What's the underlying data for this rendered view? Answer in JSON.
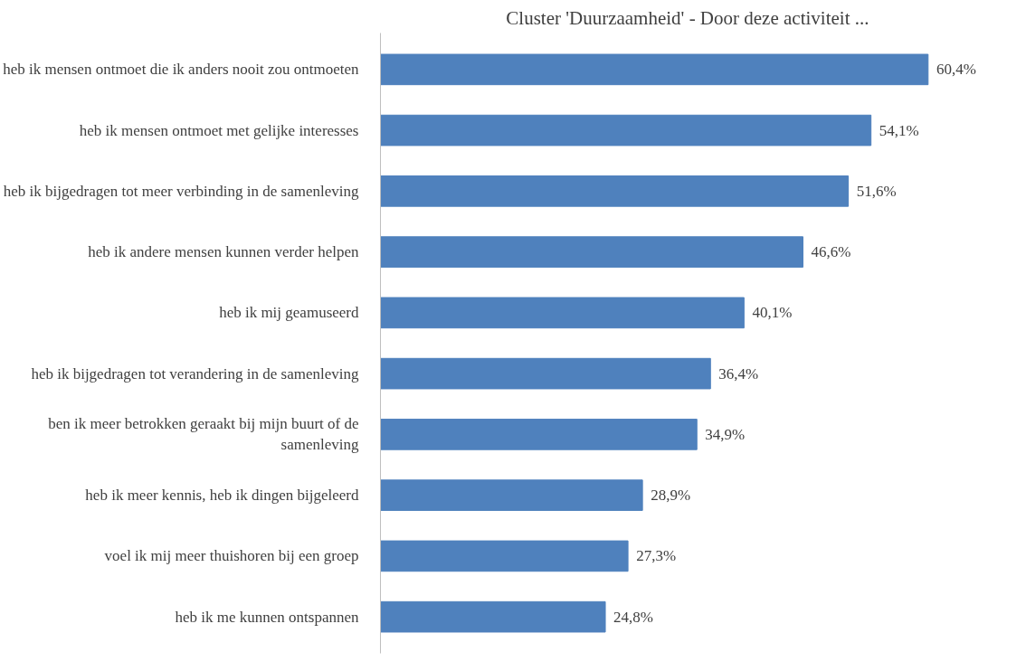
{
  "chart_data": {
    "type": "bar",
    "orientation": "horizontal",
    "title": "Cluster  'Duurzaamheid' - Door deze activiteit ...",
    "categories": [
      "heb ik mensen ontmoet die ik anders nooit zou ontmoeten",
      "heb ik mensen ontmoet met gelijke interesses",
      "heb ik bijgedragen tot meer verbinding in de samenleving",
      "heb ik andere mensen kunnen verder helpen",
      "heb ik mij geamuseerd",
      "heb ik bijgedragen tot verandering in de samenleving",
      "ben ik meer betrokken geraakt bij mijn buurt of de samenleving",
      "heb ik meer kennis, heb ik dingen bijgeleerd",
      "voel ik mij meer thuishoren bij een groep",
      "heb ik me kunnen ontspannen"
    ],
    "values": [
      60.4,
      54.1,
      51.6,
      46.6,
      40.1,
      36.4,
      34.9,
      28.9,
      27.3,
      24.8
    ],
    "value_labels": [
      "60,4%",
      "54,1%",
      "51,6%",
      "46,6%",
      "40,1%",
      "36,4%",
      "34,9%",
      "28,9%",
      "27,3%",
      "24,8%"
    ],
    "color": "#4f81bd",
    "grid": false
  }
}
